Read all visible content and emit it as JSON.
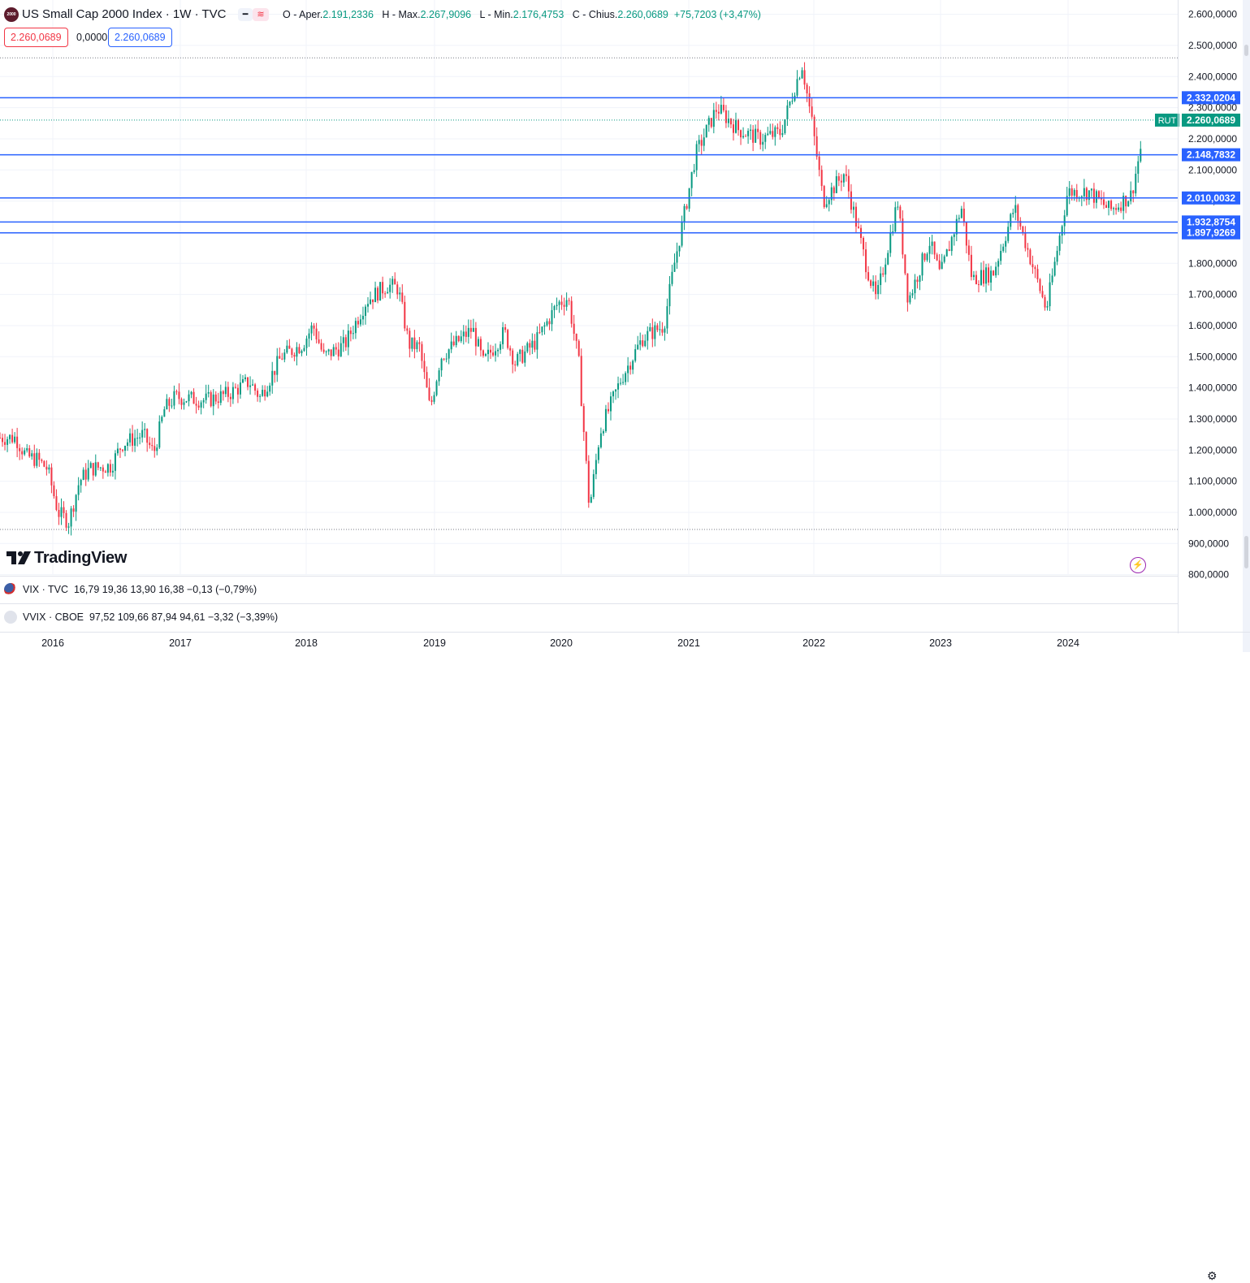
{
  "header": {
    "symbol_icon_text": "2000",
    "title": "US Small Cap 2000 Index · 1W · TVC",
    "ohlc": {
      "o_label": "O - Aper.",
      "o_value": "2.191,2336",
      "h_label": "H - Max.",
      "h_value": "2.267,9096",
      "l_label": "L - Min.",
      "l_value": "2.176,4753",
      "c_label": "C - Chius.",
      "c_value": "2.260,0689",
      "change": "+75,7203 (+3,47%)"
    },
    "bid": "2.260,0689",
    "spread": "0,0000",
    "ask": "2.260,0689"
  },
  "logo_text": "TradingView",
  "panes": [
    {
      "name": "VIX · TVC",
      "values": "16,79  19,36  13,90  16,38  −0,13 (−0,79%)"
    },
    {
      "name": "VVIX · CBOE",
      "values": "97,52  109,66  87,94  94,61  −3,32 (−3,39%)"
    }
  ],
  "colors": {
    "up": "#089981",
    "down": "#f23645",
    "hline": "#2962ff",
    "last_price_line": "#089981",
    "dotted": "#787b86"
  },
  "icons": {
    "alert": "lightning-icon",
    "settings": "gear-icon"
  },
  "chart_data": {
    "type": "candlestick",
    "title": "US Small Cap 2000 Index · 1W · TVC",
    "symbol": "RUT",
    "last_price": 2260.0689,
    "x_ticks": [
      "2016",
      "2017",
      "2018",
      "2019",
      "2020",
      "2021",
      "2022",
      "2023",
      "2024"
    ],
    "y_ticks": [
      "800,0000",
      "900,0000",
      "1.000,0000",
      "1.100,0000",
      "1.200,0000",
      "1.300,0000",
      "1.400,0000",
      "1.500,0000",
      "1.600,0000",
      "1.700,0000",
      "1.800,0000",
      "1.900,0000",
      "2.000,0000",
      "2.100,0000",
      "2.200,0000",
      "2.300,0000",
      "2.400,0000",
      "2.500,0000",
      "2.600,0000"
    ],
    "ylim": [
      800,
      2600
    ],
    "horizontal_levels": [
      {
        "value": 2332.0204,
        "label": "2.332,0204"
      },
      {
        "value": 2148.7832,
        "label": "2.148,7832"
      },
      {
        "value": 2010.0032,
        "label": "2.010,0032"
      },
      {
        "value": 1932.8754,
        "label": "1.932,8754"
      },
      {
        "value": 1897.9269,
        "label": "1.897,9269"
      }
    ],
    "dotted_levels": [
      2460,
      945
    ],
    "price_path": [
      {
        "date": "2015-09",
        "close": 1240
      },
      {
        "date": "2015-10",
        "close": 1180
      },
      {
        "date": "2015-11",
        "close": 1170
      },
      {
        "date": "2015-12",
        "close": 1140
      },
      {
        "date": "2016-01",
        "close": 1000
      },
      {
        "date": "2016-02",
        "close": 970
      },
      {
        "date": "2016-03",
        "close": 1100
      },
      {
        "date": "2016-04",
        "close": 1140
      },
      {
        "date": "2016-06",
        "close": 1150
      },
      {
        "date": "2016-07",
        "close": 1220
      },
      {
        "date": "2016-09",
        "close": 1250
      },
      {
        "date": "2016-10",
        "close": 1190
      },
      {
        "date": "2016-11",
        "close": 1330
      },
      {
        "date": "2016-12",
        "close": 1370
      },
      {
        "date": "2017-03",
        "close": 1360
      },
      {
        "date": "2017-05",
        "close": 1380
      },
      {
        "date": "2017-07",
        "close": 1420
      },
      {
        "date": "2017-08",
        "close": 1370
      },
      {
        "date": "2017-10",
        "close": 1500
      },
      {
        "date": "2017-12",
        "close": 1540
      },
      {
        "date": "2018-01",
        "close": 1600
      },
      {
        "date": "2018-02",
        "close": 1500
      },
      {
        "date": "2018-04",
        "close": 1540
      },
      {
        "date": "2018-06",
        "close": 1680
      },
      {
        "date": "2018-08",
        "close": 1730
      },
      {
        "date": "2018-09",
        "close": 1720
      },
      {
        "date": "2018-10",
        "close": 1540
      },
      {
        "date": "2018-11",
        "close": 1530
      },
      {
        "date": "2018-12",
        "close": 1330
      },
      {
        "date": "2019-01",
        "close": 1500
      },
      {
        "date": "2019-04",
        "close": 1590
      },
      {
        "date": "2019-05",
        "close": 1480
      },
      {
        "date": "2019-07",
        "close": 1580
      },
      {
        "date": "2019-08",
        "close": 1480
      },
      {
        "date": "2019-10",
        "close": 1550
      },
      {
        "date": "2019-12",
        "close": 1670
      },
      {
        "date": "2020-01",
        "close": 1690
      },
      {
        "date": "2020-02",
        "close": 1480
      },
      {
        "date": "2020-03",
        "close": 1010
      },
      {
        "date": "2020-04",
        "close": 1260
      },
      {
        "date": "2020-06",
        "close": 1430
      },
      {
        "date": "2020-08",
        "close": 1560
      },
      {
        "date": "2020-10",
        "close": 1600
      },
      {
        "date": "2020-11",
        "close": 1800
      },
      {
        "date": "2020-12",
        "close": 1970
      },
      {
        "date": "2021-01",
        "close": 2150
      },
      {
        "date": "2021-03",
        "close": 2300
      },
      {
        "date": "2021-05",
        "close": 2230
      },
      {
        "date": "2021-07",
        "close": 2200
      },
      {
        "date": "2021-09",
        "close": 2220
      },
      {
        "date": "2021-11",
        "close": 2440
      },
      {
        "date": "2021-12",
        "close": 2240
      },
      {
        "date": "2022-01",
        "close": 2000
      },
      {
        "date": "2022-03",
        "close": 2090
      },
      {
        "date": "2022-05",
        "close": 1800
      },
      {
        "date": "2022-06",
        "close": 1680
      },
      {
        "date": "2022-08",
        "close": 2000
      },
      {
        "date": "2022-09",
        "close": 1680
      },
      {
        "date": "2022-11",
        "close": 1870
      },
      {
        "date": "2022-12",
        "close": 1760
      },
      {
        "date": "2023-02",
        "close": 1980
      },
      {
        "date": "2023-03",
        "close": 1750
      },
      {
        "date": "2023-05",
        "close": 1770
      },
      {
        "date": "2023-07",
        "close": 1980
      },
      {
        "date": "2023-10",
        "close": 1650
      },
      {
        "date": "2023-12",
        "close": 2030
      },
      {
        "date": "2024-02",
        "close": 2030
      },
      {
        "date": "2024-04",
        "close": 1970
      },
      {
        "date": "2024-06",
        "close": 2020
      },
      {
        "date": "2024-07",
        "close": 2190
      },
      {
        "date": "2024-07",
        "close": 2260
      }
    ]
  }
}
